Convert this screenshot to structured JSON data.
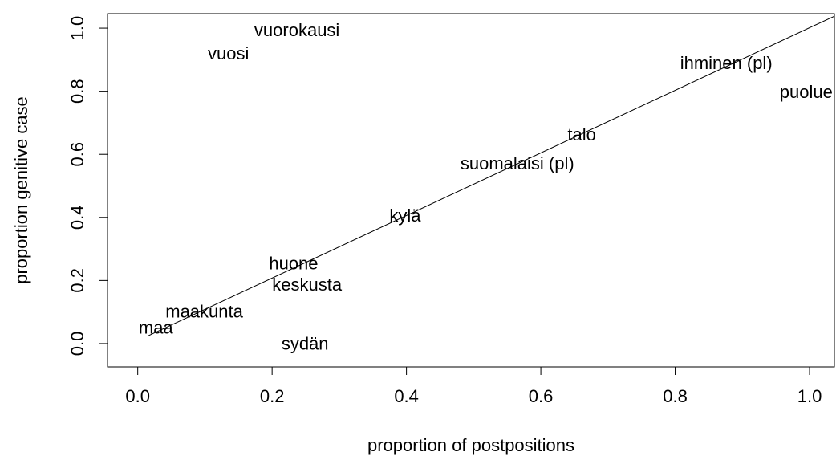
{
  "chart_data": {
    "type": "scatter",
    "x_label": "proportion of postpositions",
    "y_label": "proportion genitive case",
    "labels": [
      "vuorokausi",
      "vuosi",
      "ihminen (pl)",
      "puolue",
      "suomalaisi (pl)",
      "talo",
      "kylä",
      "keskusta",
      "huone",
      "maakunta",
      "maa",
      "sydän"
    ],
    "x": [
      0.237,
      0.135,
      0.876,
      0.995,
      0.565,
      0.661,
      0.398,
      0.252,
      0.232,
      0.099,
      0.027,
      0.249
    ],
    "y": [
      0.99,
      0.916,
      0.885,
      0.794,
      0.567,
      0.658,
      0.402,
      0.183,
      0.25,
      0.097,
      0.046,
      -0.005
    ],
    "fit_line": {
      "x": [
        0.016,
        1.037
      ],
      "y": [
        0.025,
        1.038
      ]
    },
    "xlim": [
      -0.045,
      1.037
    ],
    "ylim": [
      -0.074,
      1.046
    ],
    "xticks": [
      {
        "value": 0,
        "label": "0.0"
      },
      0.2,
      0.4,
      0.6,
      0.8,
      {
        "value": 1,
        "label": "1.0"
      }
    ],
    "yticks": [
      {
        "value": 0,
        "label": "0.0"
      },
      0.2,
      0.4,
      0.6,
      0.8,
      {
        "value": 1,
        "label": "1.0"
      }
    ]
  }
}
